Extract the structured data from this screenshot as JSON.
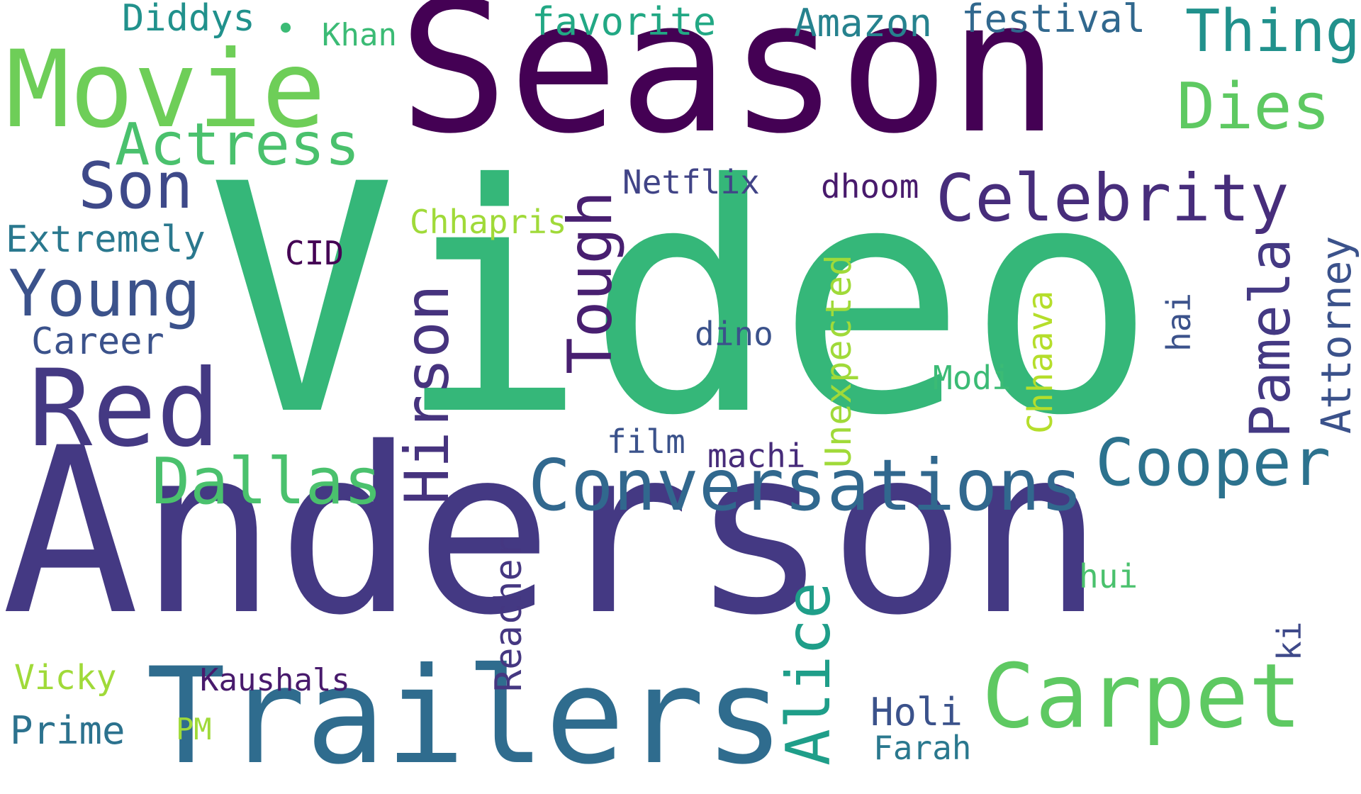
{
  "words": [
    {
      "text": "Video",
      "color": "#35b779"
    },
    {
      "text": "Anderson",
      "color": "#443983"
    },
    {
      "text": "Season",
      "color": "#440154"
    },
    {
      "text": "Trailers",
      "color": "#2f6c8e"
    },
    {
      "text": "Movie",
      "color": "#6ece58"
    },
    {
      "text": "Red",
      "color": "#443983"
    },
    {
      "text": "Carpet",
      "color": "#5ec962"
    },
    {
      "text": "Conversations",
      "color": "#31688e"
    },
    {
      "text": "Celebrity",
      "color": "#472d7b"
    },
    {
      "text": "Cooper",
      "color": "#2c728e"
    },
    {
      "text": "Dallas",
      "color": "#4ac16d"
    },
    {
      "text": "Young",
      "color": "#3b528b"
    },
    {
      "text": "Actress",
      "color": "#4ac16d"
    },
    {
      "text": "Son",
      "color": "#3e4989"
    },
    {
      "text": "Dies",
      "color": "#5ec962"
    },
    {
      "text": "Thing",
      "color": "#21918c"
    },
    {
      "text": "Hirson",
      "color": "#46337e"
    },
    {
      "text": "Tough",
      "color": "#481f70"
    },
    {
      "text": "Alice",
      "color": "#1f9e89"
    },
    {
      "text": "Pamela",
      "color": "#443983"
    },
    {
      "text": "Attorney",
      "color": "#3b528b"
    },
    {
      "text": "Unexpected",
      "color": "#a0da39"
    },
    {
      "text": "Reacher",
      "color": "#453781"
    },
    {
      "text": "Chhaava",
      "color": "#b5de2b"
    },
    {
      "text": "hai",
      "color": "#3b528b"
    },
    {
      "text": "ki",
      "color": "#3e4989"
    },
    {
      "text": "festival",
      "color": "#31688e"
    },
    {
      "text": "Amazon",
      "color": "#26828e"
    },
    {
      "text": "favorite",
      "color": "#22a884"
    },
    {
      "text": "Diddys",
      "color": "#21918c"
    },
    {
      "text": "Khan",
      "color": "#3bbb75"
    },
    {
      "text": "Extremely",
      "color": "#2a788e"
    },
    {
      "text": "Career",
      "color": "#3b528b"
    },
    {
      "text": "CID",
      "color": "#440154"
    },
    {
      "text": "Chhapris",
      "color": "#a0da39"
    },
    {
      "text": "Netflix",
      "color": "#414487"
    },
    {
      "text": "dhoom",
      "color": "#481a6c"
    },
    {
      "text": "dino",
      "color": "#3b528b"
    },
    {
      "text": "Modi",
      "color": "#3bbb75"
    },
    {
      "text": "film",
      "color": "#3b528b"
    },
    {
      "text": "machi",
      "color": "#472c7a"
    },
    {
      "text": "hui",
      "color": "#4ac16d"
    },
    {
      "text": "Holi",
      "color": "#3b528b"
    },
    {
      "text": "Farah",
      "color": "#2a788e"
    },
    {
      "text": "Vicky",
      "color": "#a0da39"
    },
    {
      "text": "Kaushals",
      "color": "#481a6c"
    },
    {
      "text": "Prime",
      "color": "#2c728e"
    },
    {
      "text": "PM",
      "color": "#a0da39"
    }
  ],
  "dot_color": "#3bbb75"
}
